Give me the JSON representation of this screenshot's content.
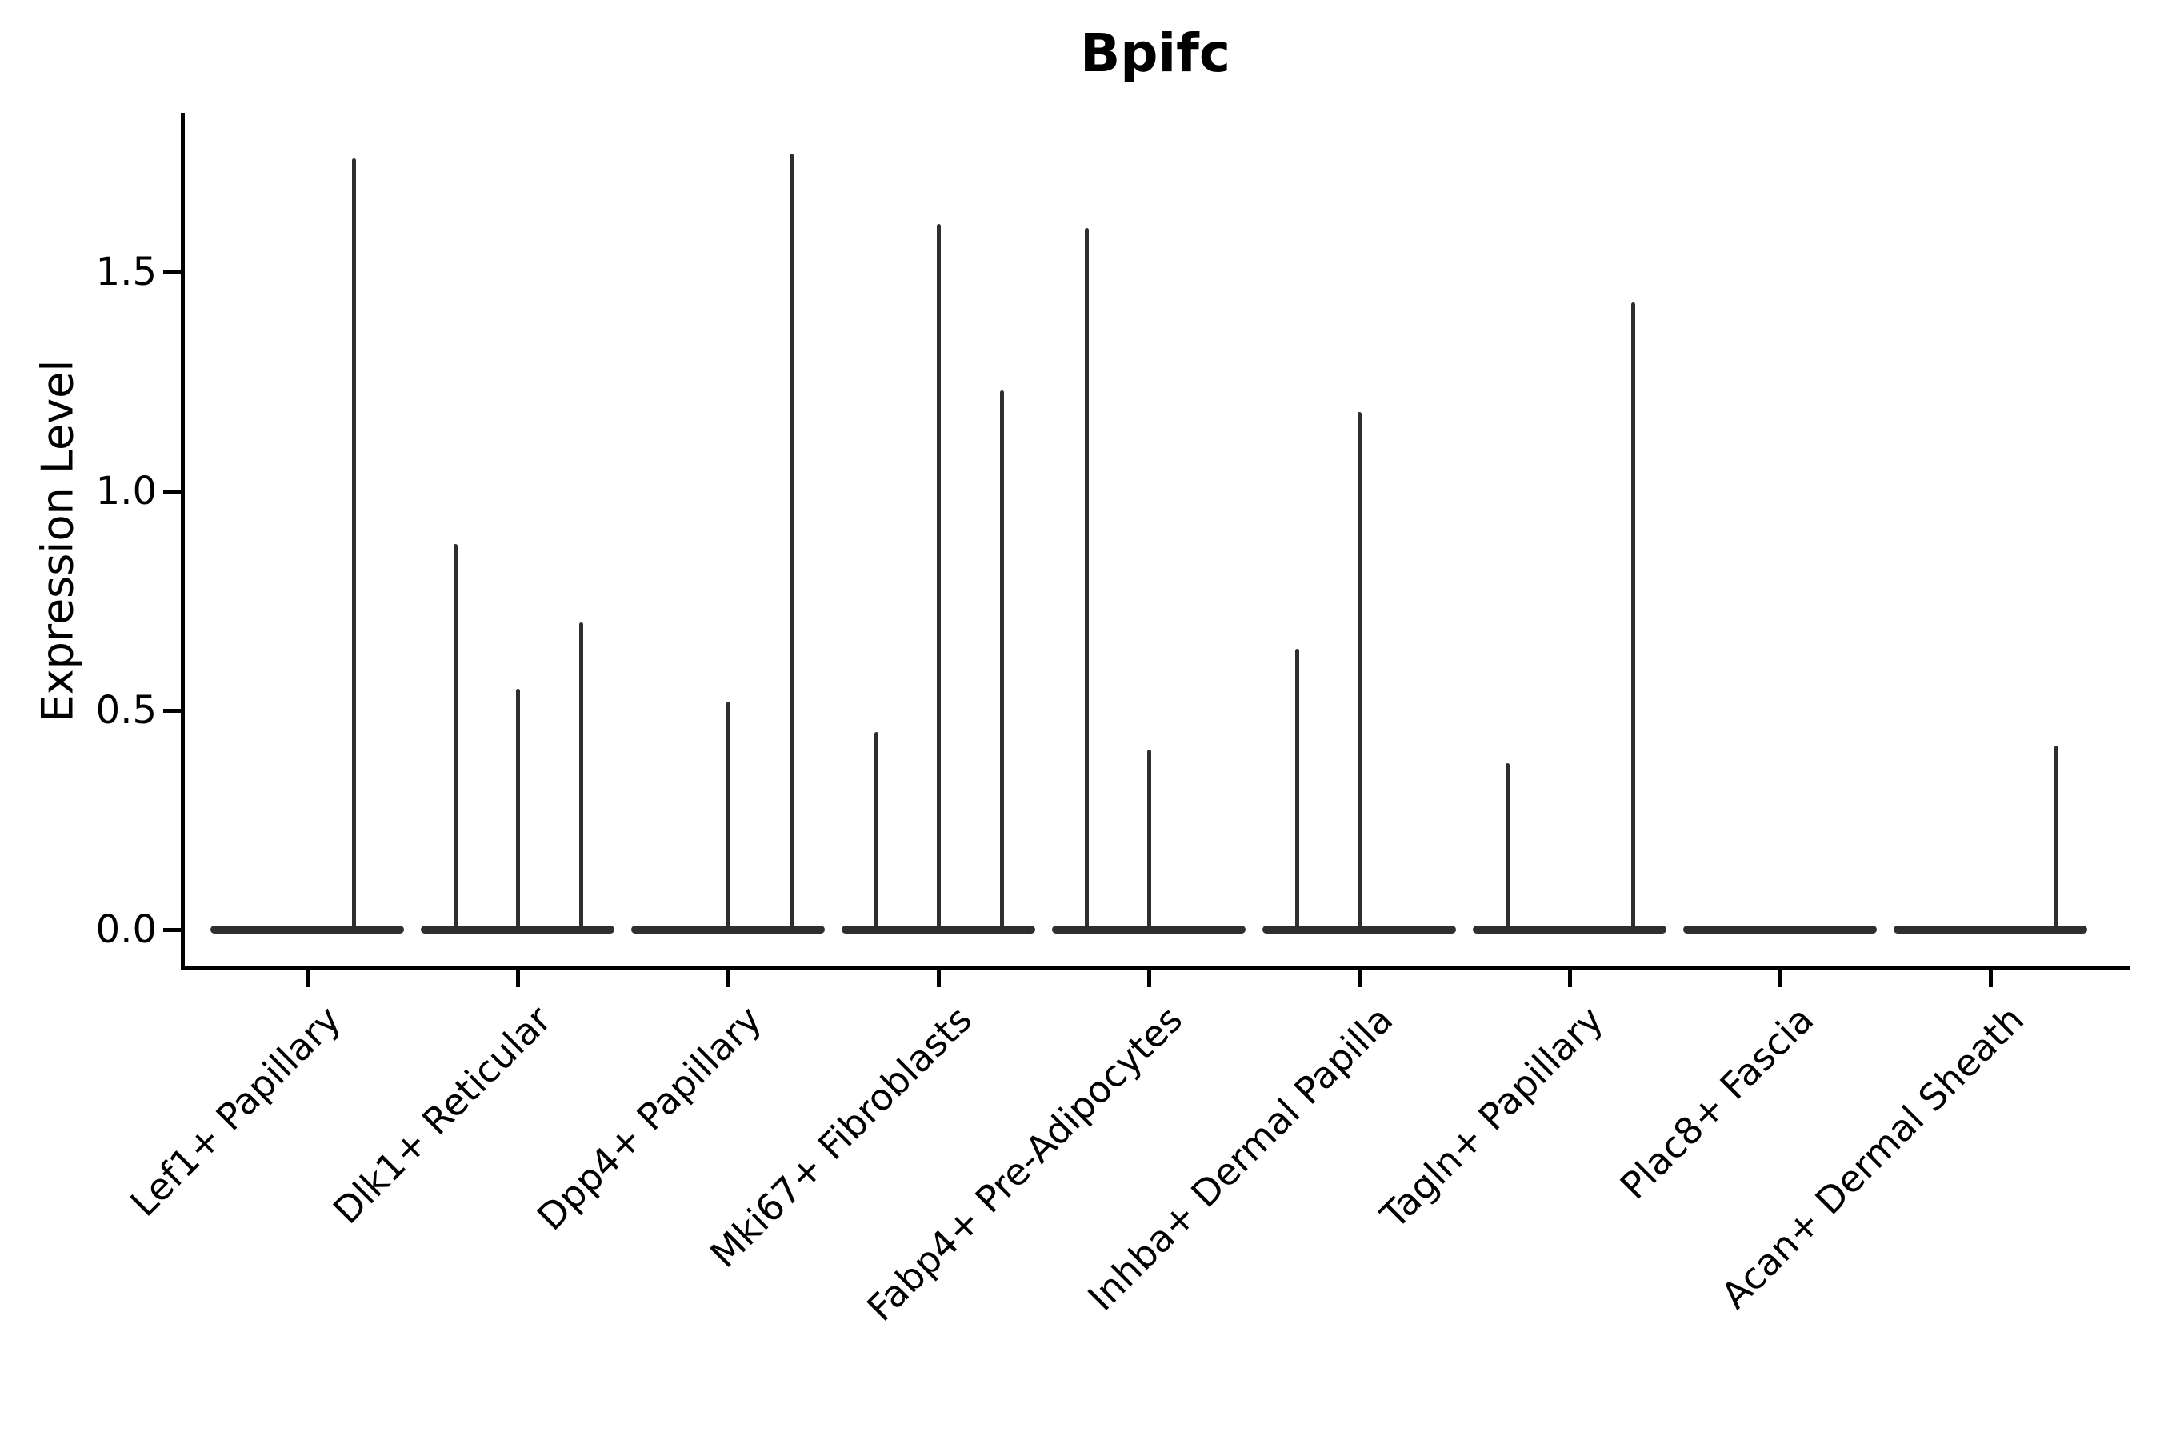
{
  "chart_data": {
    "type": "violin",
    "title": "Bpifc",
    "xlabel": "",
    "ylabel": "Expression Level",
    "ylim": [
      -0.09,
      1.86
    ],
    "grid": false,
    "legend": "none",
    "y_ticks": [
      {
        "value": 1.5,
        "label": "1.5"
      },
      {
        "value": 1.0,
        "label": "1.0"
      },
      {
        "value": 0.5,
        "label": "0.5"
      },
      {
        "value": 0.0,
        "label": "0.0"
      }
    ],
    "categories": [
      "Lef1+ Papillary",
      "Dlk1+ Reticular",
      "Dpp4+ Papillary",
      "Mki67+ Fibroblasts",
      "Fabp4+ Pre-Adipocytes",
      "Inhba+ Dermal Papilla",
      "Tagln+ Papillary",
      "Plac8+ Fascia",
      "Acan+ Dermal Sheath"
    ],
    "series": [
      {
        "category": "Lef1+ Papillary",
        "zero_mass": true,
        "spikes": [
          {
            "offset": 0.74,
            "value": 1.76
          }
        ]
      },
      {
        "category": "Dlk1+ Reticular",
        "zero_mass": true,
        "spikes": [
          {
            "offset": 0.18,
            "value": 0.88
          },
          {
            "offset": 0.5,
            "value": 0.55
          },
          {
            "offset": 0.83,
            "value": 0.7
          }
        ]
      },
      {
        "category": "Dpp4+ Papillary",
        "zero_mass": true,
        "spikes": [
          {
            "offset": 0.5,
            "value": 0.52
          },
          {
            "offset": 0.83,
            "value": 1.77
          }
        ]
      },
      {
        "category": "Mki67+ Fibroblasts",
        "zero_mass": true,
        "spikes": [
          {
            "offset": 0.18,
            "value": 0.45
          },
          {
            "offset": 0.5,
            "value": 1.61
          },
          {
            "offset": 0.83,
            "value": 1.23
          }
        ]
      },
      {
        "category": "Fabp4+ Pre-Adipocytes",
        "zero_mass": true,
        "spikes": [
          {
            "offset": 0.18,
            "value": 1.6
          },
          {
            "offset": 0.5,
            "value": 0.41
          }
        ]
      },
      {
        "category": "Inhba+ Dermal Papilla",
        "zero_mass": true,
        "spikes": [
          {
            "offset": 0.18,
            "value": 0.64
          },
          {
            "offset": 0.5,
            "value": 1.18
          }
        ]
      },
      {
        "category": "Tagln+ Papillary",
        "zero_mass": true,
        "spikes": [
          {
            "offset": 0.18,
            "value": 0.38
          },
          {
            "offset": 0.83,
            "value": 1.43
          }
        ]
      },
      {
        "category": "Plac8+ Fascia",
        "zero_mass": true,
        "spikes": []
      },
      {
        "category": "Acan+ Dermal Sheath",
        "zero_mass": true,
        "spikes": [
          {
            "offset": 0.84,
            "value": 0.42
          }
        ]
      }
    ],
    "colors": {
      "ink": "#000000",
      "violin": "#2e2e2e",
      "background": "#ffffff"
    }
  }
}
